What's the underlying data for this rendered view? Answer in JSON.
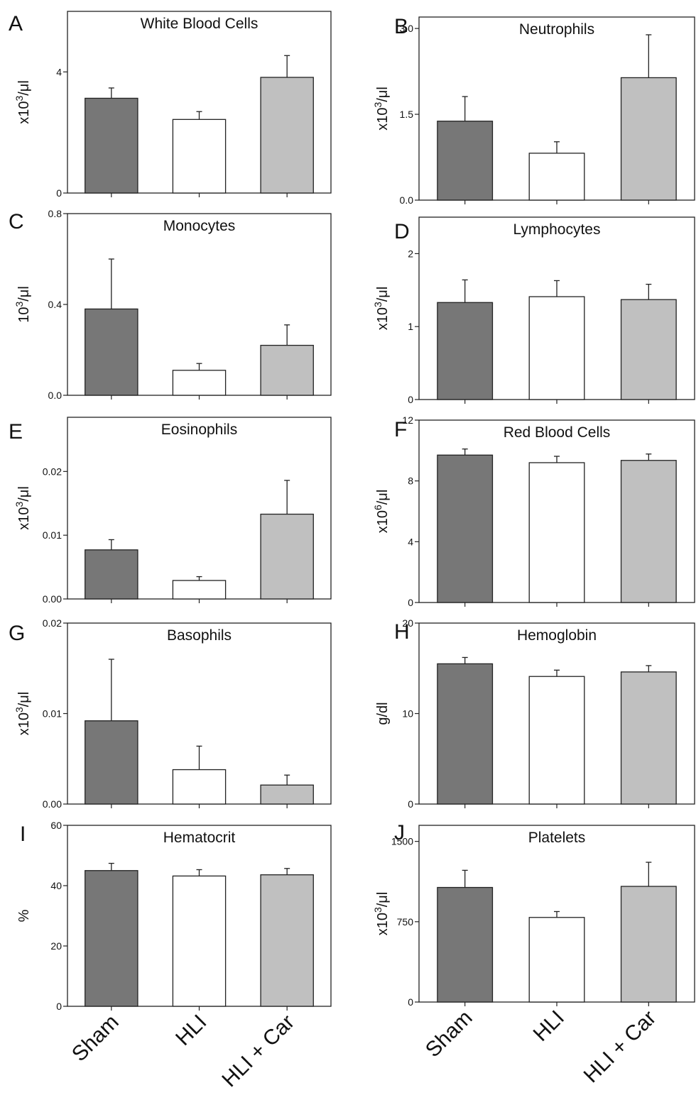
{
  "colors": {
    "Sham": "#777777",
    "HLI": "#ffffff",
    "HLI + Car": "#c0c0c0"
  },
  "x_categories": [
    "Sham",
    "HLI",
    "HLI + Car"
  ],
  "chart_data": [
    {
      "type": "bar",
      "panel": "A",
      "title": "White Blood Cells",
      "ylabel_pre": "x10",
      "ylabel_sup": "3",
      "ylabel_post": "/μl",
      "ylim": [
        0,
        6
      ],
      "yticks": [
        "0",
        "4"
      ],
      "ytick_values": [
        0,
        4
      ],
      "categories": [
        "Sham",
        "HLI",
        "HLI + Car"
      ],
      "values": [
        3.13,
        2.43,
        3.82
      ],
      "errors": [
        0.34,
        0.26,
        0.72
      ]
    },
    {
      "type": "bar",
      "panel": "B",
      "title": "Neutrophils",
      "ylabel_pre": "x10",
      "ylabel_sup": "3",
      "ylabel_post": "/μl",
      "ylim": [
        0,
        3.2
      ],
      "yticks": [
        "0.0",
        "1.5",
        "3.0"
      ],
      "ytick_values": [
        0,
        1.5,
        3.0
      ],
      "categories": [
        "Sham",
        "HLI",
        "HLI + Car"
      ],
      "values": [
        1.38,
        0.82,
        2.14
      ],
      "errors": [
        0.43,
        0.2,
        0.75
      ]
    },
    {
      "type": "bar",
      "panel": "C",
      "title": "Monocytes",
      "ylabel_pre": "10",
      "ylabel_sup": "3",
      "ylabel_post": "/μl",
      "ylim": [
        0,
        0.8
      ],
      "yticks": [
        "0.0",
        "0.4",
        "0.8"
      ],
      "ytick_values": [
        0,
        0.4,
        0.8
      ],
      "categories": [
        "Sham",
        "HLI",
        "HLI + Car"
      ],
      "values": [
        0.38,
        0.11,
        0.22
      ],
      "errors": [
        0.22,
        0.03,
        0.09
      ]
    },
    {
      "type": "bar",
      "panel": "D",
      "title": "Lymphocytes",
      "ylabel_pre": "x10",
      "ylabel_sup": "3",
      "ylabel_post": "/μl",
      "ylim": [
        0,
        2.5
      ],
      "yticks": [
        "0",
        "1",
        "2"
      ],
      "ytick_values": [
        0,
        1,
        2
      ],
      "categories": [
        "Sham",
        "HLI",
        "HLI + Car"
      ],
      "values": [
        1.33,
        1.41,
        1.37
      ],
      "errors": [
        0.31,
        0.22,
        0.21
      ]
    },
    {
      "type": "bar",
      "panel": "E",
      "title": "Eosinophils",
      "ylabel_pre": "x10",
      "ylabel_sup": "3",
      "ylabel_post": "/μl",
      "ylim": [
        0,
        0.0285
      ],
      "yticks": [
        "0.00",
        "0.01",
        "0.02"
      ],
      "ytick_values": [
        0,
        0.01,
        0.02
      ],
      "categories": [
        "Sham",
        "HLI",
        "HLI + Car"
      ],
      "values": [
        0.0077,
        0.0029,
        0.0133
      ],
      "errors": [
        0.0016,
        0.0006,
        0.0053
      ]
    },
    {
      "type": "bar",
      "panel": "F",
      "title": "Red Blood Cells",
      "ylabel_pre": "x10",
      "ylabel_sup": "6",
      "ylabel_post": "/μl",
      "ylim": [
        0,
        12
      ],
      "yticks": [
        "0",
        "4",
        "8",
        "12"
      ],
      "ytick_values": [
        0,
        4,
        8,
        12
      ],
      "categories": [
        "Sham",
        "HLI",
        "HLI + Car"
      ],
      "values": [
        9.7,
        9.2,
        9.35
      ],
      "errors": [
        0.4,
        0.42,
        0.42
      ]
    },
    {
      "type": "bar",
      "panel": "G",
      "title": "Basophils",
      "ylabel_pre": "x10",
      "ylabel_sup": "3",
      "ylabel_post": "/μl",
      "ylim": [
        0,
        0.02
      ],
      "yticks": [
        "0.00",
        "0.01",
        "0.02"
      ],
      "ytick_values": [
        0,
        0.01,
        0.02
      ],
      "categories": [
        "Sham",
        "HLI",
        "HLI + Car"
      ],
      "values": [
        0.0092,
        0.0038,
        0.0021
      ],
      "errors": [
        0.0068,
        0.0026,
        0.0011
      ]
    },
    {
      "type": "bar",
      "panel": "H",
      "title": "Hemoglobin",
      "ylabel_pre": "g/dl",
      "ylabel_sup": "",
      "ylabel_post": "",
      "ylim": [
        0,
        20
      ],
      "yticks": [
        "0",
        "10",
        "20"
      ],
      "ytick_values": [
        0,
        10,
        20
      ],
      "categories": [
        "Sham",
        "HLI",
        "HLI + Car"
      ],
      "values": [
        15.5,
        14.1,
        14.6
      ],
      "errors": [
        0.7,
        0.7,
        0.7
      ]
    },
    {
      "type": "bar",
      "panel": "I",
      "title": "Hematocrit",
      "ylabel_pre": "%",
      "ylabel_sup": "",
      "ylabel_post": "",
      "ylim": [
        0,
        60
      ],
      "yticks": [
        "0",
        "20",
        "40",
        "60"
      ],
      "ytick_values": [
        0,
        20,
        40,
        60
      ],
      "categories": [
        "Sham",
        "HLI",
        "HLI + Car"
      ],
      "values": [
        45.0,
        43.2,
        43.6
      ],
      "errors": [
        2.4,
        2.1,
        2.1
      ]
    },
    {
      "type": "bar",
      "panel": "J",
      "title": "Platelets",
      "ylabel_pre": "x10",
      "ylabel_sup": "3",
      "ylabel_post": "/μl",
      "ylim": [
        0,
        1650
      ],
      "yticks": [
        "0",
        "750",
        "1500"
      ],
      "ytick_values": [
        0,
        750,
        1500
      ],
      "categories": [
        "Sham",
        "HLI",
        "HLI + Car"
      ],
      "values": [
        1070,
        790,
        1080
      ],
      "errors": [
        160,
        55,
        225
      ]
    }
  ]
}
